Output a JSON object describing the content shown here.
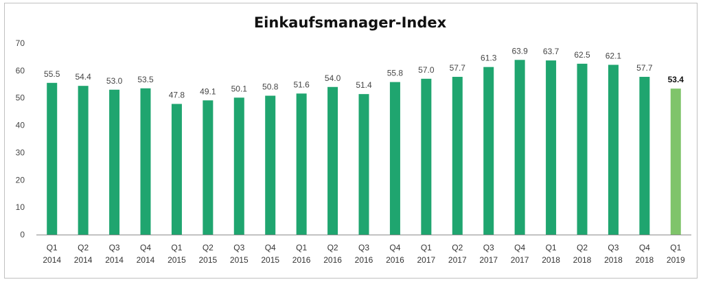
{
  "chart_data": {
    "type": "bar",
    "title": "Einkaufsmanager-Index",
    "xlabel": "",
    "ylabel": "",
    "ylim": [
      0,
      70
    ],
    "yticks": [
      0,
      10,
      20,
      30,
      40,
      50,
      60,
      70
    ],
    "grid": false,
    "legend": "none",
    "categories": [
      [
        "Q1",
        "2014"
      ],
      [
        "Q2",
        "2014"
      ],
      [
        "Q3",
        "2014"
      ],
      [
        "Q4",
        "2014"
      ],
      [
        "Q1",
        "2015"
      ],
      [
        "Q2",
        "2015"
      ],
      [
        "Q3",
        "2015"
      ],
      [
        "Q4",
        "2015"
      ],
      [
        "Q1",
        "2016"
      ],
      [
        "Q2",
        "2016"
      ],
      [
        "Q3",
        "2016"
      ],
      [
        "Q4",
        "2016"
      ],
      [
        "Q1",
        "2017"
      ],
      [
        "Q2",
        "2017"
      ],
      [
        "Q3",
        "2017"
      ],
      [
        "Q4",
        "2017"
      ],
      [
        "Q1",
        "2018"
      ],
      [
        "Q2",
        "2018"
      ],
      [
        "Q3",
        "2018"
      ],
      [
        "Q4",
        "2018"
      ],
      [
        "Q1",
        "2019"
      ]
    ],
    "values": [
      55.5,
      54.4,
      53.0,
      53.5,
      47.8,
      49.1,
      50.1,
      50.8,
      51.6,
      54.0,
      51.4,
      55.8,
      57.0,
      57.7,
      61.3,
      63.9,
      63.7,
      62.5,
      62.1,
      57.7,
      53.4
    ],
    "data_labels": [
      "55.5",
      "54.4",
      "53.0",
      "53.5",
      "47.8",
      "49.1",
      "50.1",
      "50.8",
      "51.6",
      "54.0",
      "51.4",
      "55.8",
      "57.0",
      "57.7",
      "61.3",
      "63.9",
      "63.7",
      "62.5",
      "62.1",
      "57.7",
      "53.4"
    ],
    "highlight_index": 20,
    "colors": {
      "bar": "#1fa56f",
      "highlight_bar": "#7fc46a",
      "axis": "#8c8c8c"
    }
  }
}
